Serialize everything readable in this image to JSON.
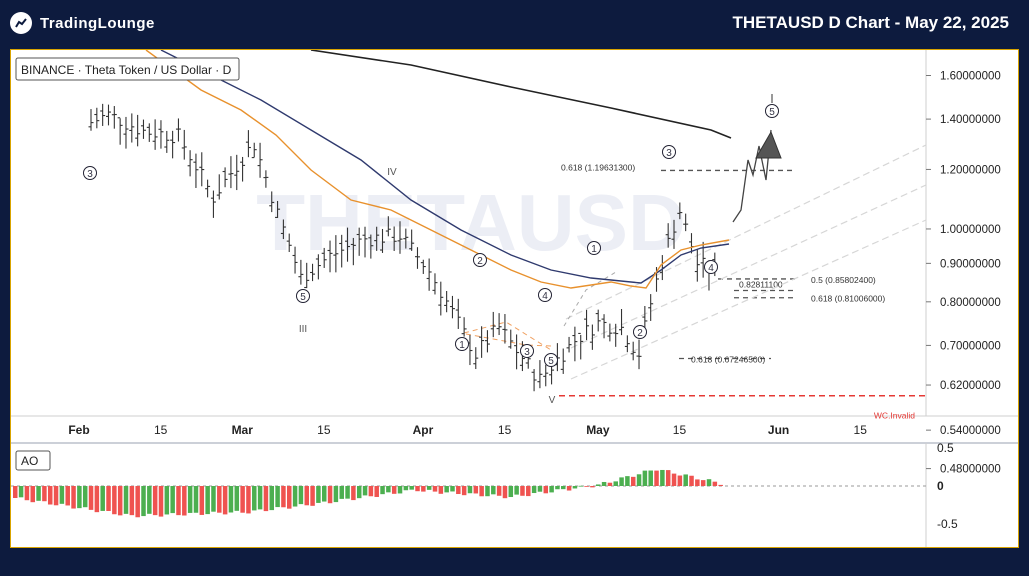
{
  "header": {
    "logo_text": "TradingLounge",
    "title": "THETAUSD D Chart - May 22, 2025"
  },
  "colors": {
    "background": "#0d1b3e",
    "frame_border": "#d9a400",
    "ema_fast": "#e8912d",
    "ema_slow": "#2f3a6e",
    "ma_long": "#222222",
    "ao_up": "#4caf50",
    "ao_down": "#ef5350",
    "invalid_line": "#e53935"
  },
  "chart_data": [
    {
      "type": "line",
      "symbol_label": "BINANCE · Theta Token / US Dollar · D",
      "watermark": "THETAUSD",
      "scale": "log",
      "ylim": [
        0.47,
        1.68
      ],
      "y_ticks": [
        "1.60000000",
        "1.40000000",
        "1.20000000",
        "1.00000000",
        "0.90000000",
        "0.80000000",
        "0.70000000",
        "0.62000000",
        "0.54000000",
        "0.48000000"
      ],
      "x_ticks": [
        "Feb",
        "15",
        "Mar",
        "15",
        "Apr",
        "15",
        "May",
        "15",
        "Jun",
        "15"
      ],
      "fib_levels": [
        {
          "label": "0.618 (1.19631300)",
          "value": 1.196313
        },
        {
          "label": "0.5 (0.85802400)",
          "value": 0.858024
        },
        {
          "label": "0.82811100",
          "value": 0.828111
        },
        {
          "label": "0.618 (0.81006000)",
          "value": 0.81006
        },
        {
          "label": "0.618 (0.67246500)",
          "value": 0.672465
        }
      ],
      "invalidation": {
        "label": "WC.Invalid",
        "value": 0.6
      },
      "wave_labels": [
        "3",
        "5",
        "III",
        "IV",
        "1",
        "2",
        "3",
        "4",
        "5",
        "V",
        "1",
        "2",
        "3",
        "4",
        "5"
      ]
    },
    {
      "type": "bar",
      "indicator": "AO",
      "y_ticks": [
        "0.5",
        "0",
        "-0.5"
      ]
    }
  ]
}
